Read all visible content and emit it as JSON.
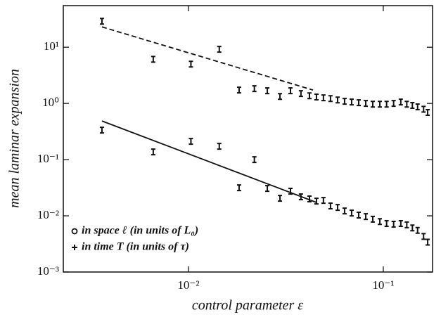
{
  "chart_data": {
    "type": "scatter",
    "xlabel": "control parameter ε",
    "ylabel": "mean laminar expansion",
    "xscale": "log",
    "yscale": "log",
    "xlim": [
      0.00228,
      0.179
    ],
    "ylim": [
      0.001,
      55
    ],
    "xticks": [
      {
        "value": 0.01,
        "label": "10⁻²"
      },
      {
        "value": 0.1,
        "label": "10⁻¹"
      }
    ],
    "yticks": [
      {
        "value": 0.001,
        "label": "10⁻³"
      },
      {
        "value": 0.01,
        "label": "10⁻²"
      },
      {
        "value": 0.1,
        "label": "10⁻¹"
      },
      {
        "value": 1,
        "label": "10⁰"
      },
      {
        "value": 10,
        "label": "10¹"
      }
    ],
    "legend": "lower left",
    "x": [
      0.0036,
      0.0066,
      0.0103,
      0.0144,
      0.0182,
      0.0218,
      0.0254,
      0.0295,
      0.0334,
      0.0378,
      0.0418,
      0.0454,
      0.0493,
      0.0536,
      0.0583,
      0.0633,
      0.0688,
      0.0748,
      0.0813,
      0.0883,
      0.096,
      0.104,
      0.113,
      0.123,
      0.132,
      0.141,
      0.15,
      0.161,
      0.169
    ],
    "series": [
      {
        "name": "in space ℓ (in units of L₀)",
        "marker": "circle",
        "color": "#111111",
        "values": [
          29,
          6.1,
          5.0,
          9.2,
          1.73,
          1.83,
          1.68,
          1.33,
          1.68,
          1.5,
          1.37,
          1.3,
          1.26,
          1.22,
          1.15,
          1.09,
          1.06,
          1.03,
          1.0,
          0.97,
          0.97,
          0.97,
          1.0,
          1.06,
          0.97,
          0.92,
          0.87,
          0.79,
          0.69
        ]
      },
      {
        "name": "in time T (in units of τ)",
        "marker": "plus",
        "color": "#111111",
        "values": [
          0.335,
          0.137,
          0.211,
          0.173,
          0.0316,
          0.1,
          0.0307,
          0.0205,
          0.0274,
          0.0218,
          0.02,
          0.0183,
          0.0188,
          0.015,
          0.0141,
          0.0122,
          0.0112,
          0.0103,
          0.0097,
          0.0087,
          0.0079,
          0.0073,
          0.0071,
          0.0073,
          0.0069,
          0.0061,
          0.0055,
          0.0043,
          0.0034
        ]
      }
    ],
    "fits": [
      {
        "x": [
          0.0036,
          0.0436
        ],
        "values": [
          23,
          1.73
        ],
        "dashed": true,
        "color": "#111111"
      },
      {
        "x": [
          0.0036,
          0.0454
        ],
        "values": [
          0.487,
          0.0173
        ],
        "dashed": false,
        "color": "#111111"
      }
    ]
  }
}
